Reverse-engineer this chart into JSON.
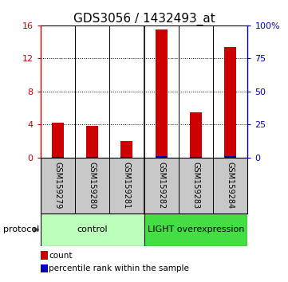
{
  "title": "GDS3056 / 1432493_at",
  "samples": [
    "GSM159279",
    "GSM159280",
    "GSM159281",
    "GSM159282",
    "GSM159283",
    "GSM159284"
  ],
  "count_values": [
    4.2,
    3.8,
    2.0,
    15.5,
    5.5,
    13.4
  ],
  "percentile_values": [
    0.2,
    0.15,
    0.1,
    1.0,
    0.2,
    1.0
  ],
  "ylim_left": [
    0,
    16
  ],
  "ylim_right": [
    0,
    100
  ],
  "yticks_left": [
    0,
    4,
    8,
    12,
    16
  ],
  "yticks_right": [
    0,
    25,
    50,
    75,
    100
  ],
  "ytick_labels_left": [
    "0",
    "4",
    "8",
    "12",
    "16"
  ],
  "ytick_labels_right": [
    "0",
    "25",
    "50",
    "75",
    "100%"
  ],
  "groups": [
    {
      "label": "control",
      "start": 0,
      "end": 3,
      "color": "#bbffbb"
    },
    {
      "label": "LIGHT overexpression",
      "start": 3,
      "end": 6,
      "color": "#44dd44"
    }
  ],
  "protocol_label": "protocol",
  "red_color": "#cc0000",
  "blue_color": "#0000bb",
  "bg_color": "#ffffff",
  "sample_bg_color": "#c8c8c8",
  "legend_red": "count",
  "legend_blue": "percentile rank within the sample",
  "title_fontsize": 11,
  "tick_fontsize": 8,
  "sample_fontsize": 7,
  "group_fontsize": 8,
  "legend_fontsize": 7.5
}
